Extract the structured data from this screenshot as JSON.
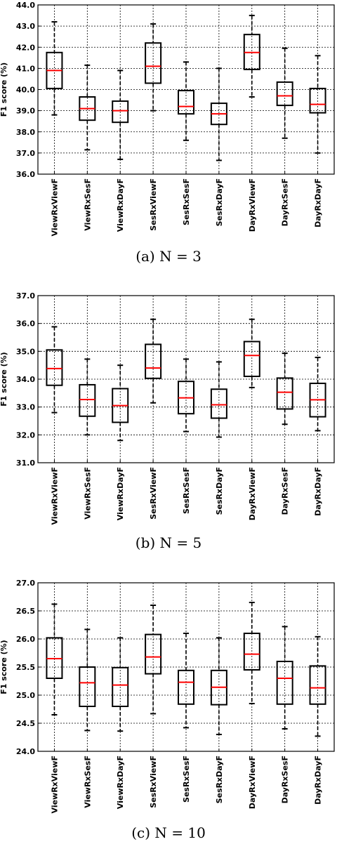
{
  "chart_data": [
    {
      "type": "box",
      "caption": "(a) N = 3",
      "ylabel": "F1 score (%)",
      "ylim": [
        36.0,
        44.0
      ],
      "yticks": [
        "36.0",
        "37.0",
        "38.0",
        "39.0",
        "40.0",
        "41.0",
        "42.0",
        "43.0",
        "44.0"
      ],
      "grid": true,
      "categories": [
        "ViewRxViewF",
        "ViewRxSesF",
        "ViewRxDayF",
        "SesRxViewF",
        "SesRxSesF",
        "SesRxDayF",
        "DayRxViewF",
        "DayRxSesF",
        "DayRxDayF"
      ],
      "boxes": [
        {
          "whisker_low": 38.8,
          "q1": 40.05,
          "median": 40.9,
          "q3": 41.75,
          "whisker_high": 43.2
        },
        {
          "whisker_low": 37.15,
          "q1": 38.55,
          "median": 39.1,
          "q3": 39.65,
          "whisker_high": 41.15
        },
        {
          "whisker_low": 36.7,
          "q1": 38.45,
          "median": 39.0,
          "q3": 39.45,
          "whisker_high": 40.9
        },
        {
          "whisker_low": 39.0,
          "q1": 40.3,
          "median": 41.1,
          "q3": 42.2,
          "whisker_high": 43.1
        },
        {
          "whisker_low": 37.6,
          "q1": 38.85,
          "median": 39.2,
          "q3": 39.95,
          "whisker_high": 41.3
        },
        {
          "whisker_low": 36.65,
          "q1": 38.35,
          "median": 38.85,
          "q3": 39.35,
          "whisker_high": 41.0
        },
        {
          "whisker_low": 39.65,
          "q1": 40.95,
          "median": 41.75,
          "q3": 42.6,
          "whisker_high": 43.5
        },
        {
          "whisker_low": 37.7,
          "q1": 39.25,
          "median": 39.7,
          "q3": 40.35,
          "whisker_high": 41.95
        },
        {
          "whisker_low": 37.0,
          "q1": 38.9,
          "median": 39.3,
          "q3": 40.05,
          "whisker_high": 41.6
        }
      ]
    },
    {
      "type": "box",
      "caption": "(b) N = 5",
      "ylabel": "F1 score (%)",
      "ylim": [
        31.0,
        37.0
      ],
      "yticks": [
        "31.0",
        "32.0",
        "33.0",
        "34.0",
        "35.0",
        "36.0",
        "37.0"
      ],
      "grid": true,
      "categories": [
        "ViewRxViewF",
        "ViewRxSesF",
        "ViewRxDayF",
        "SesRxViewF",
        "SesRxSesF",
        "SesRxDayF",
        "DayRxViewF",
        "DayRxSesF",
        "DayRxDayF"
      ],
      "boxes": [
        {
          "whisker_low": 32.8,
          "q1": 33.78,
          "median": 34.38,
          "q3": 35.05,
          "whisker_high": 35.88
        },
        {
          "whisker_low": 32.0,
          "q1": 32.67,
          "median": 33.27,
          "q3": 33.8,
          "whisker_high": 34.72
        },
        {
          "whisker_low": 31.8,
          "q1": 32.45,
          "median": 33.05,
          "q3": 33.66,
          "whisker_high": 34.5
        },
        {
          "whisker_low": 33.15,
          "q1": 34.03,
          "median": 34.4,
          "q3": 35.25,
          "whisker_high": 36.15
        },
        {
          "whisker_low": 32.12,
          "q1": 32.76,
          "median": 33.33,
          "q3": 33.92,
          "whisker_high": 34.72
        },
        {
          "whisker_low": 31.92,
          "q1": 32.6,
          "median": 33.08,
          "q3": 33.64,
          "whisker_high": 34.62
        },
        {
          "whisker_low": 33.7,
          "q1": 34.1,
          "median": 34.85,
          "q3": 35.35,
          "whisker_high": 36.15
        },
        {
          "whisker_low": 32.38,
          "q1": 32.93,
          "median": 33.53,
          "q3": 34.04,
          "whisker_high": 34.93
        },
        {
          "whisker_low": 32.15,
          "q1": 32.65,
          "median": 33.26,
          "q3": 33.85,
          "whisker_high": 34.78
        }
      ]
    },
    {
      "type": "box",
      "caption": "(c) N = 10",
      "ylabel": "F1 score (%)",
      "ylim": [
        24.0,
        27.0
      ],
      "yticks": [
        "24.0",
        "24.5",
        "25.0",
        "25.5",
        "26.0",
        "26.5",
        "27.0"
      ],
      "grid": true,
      "categories": [
        "ViewRxViewF",
        "ViewRxSesF",
        "ViewRxDayF",
        "SesRxViewF",
        "SesRxSesF",
        "SesRxDayF",
        "DayRxViewF",
        "DayRxSesF",
        "DayRxDayF"
      ],
      "boxes": [
        {
          "whisker_low": 24.65,
          "q1": 25.3,
          "median": 25.65,
          "q3": 26.02,
          "whisker_high": 26.62
        },
        {
          "whisker_low": 24.37,
          "q1": 24.8,
          "median": 25.22,
          "q3": 25.5,
          "whisker_high": 26.17
        },
        {
          "whisker_low": 24.36,
          "q1": 24.8,
          "median": 25.18,
          "q3": 25.49,
          "whisker_high": 26.02
        },
        {
          "whisker_low": 24.67,
          "q1": 25.38,
          "median": 25.68,
          "q3": 26.08,
          "whisker_high": 26.6
        },
        {
          "whisker_low": 24.42,
          "q1": 24.84,
          "median": 25.23,
          "q3": 25.44,
          "whisker_high": 26.1
        },
        {
          "whisker_low": 24.3,
          "q1": 24.83,
          "median": 25.14,
          "q3": 25.44,
          "whisker_high": 26.02
        },
        {
          "whisker_low": 24.85,
          "q1": 25.45,
          "median": 25.73,
          "q3": 26.1,
          "whisker_high": 26.65
        },
        {
          "whisker_low": 24.4,
          "q1": 24.84,
          "median": 25.3,
          "q3": 25.6,
          "whisker_high": 26.22
        },
        {
          "whisker_low": 24.27,
          "q1": 24.84,
          "median": 25.13,
          "q3": 25.52,
          "whisker_high": 26.04
        }
      ]
    }
  ],
  "colors": {
    "box": "#000000",
    "median": "#ff0000",
    "grid": "#000000"
  }
}
